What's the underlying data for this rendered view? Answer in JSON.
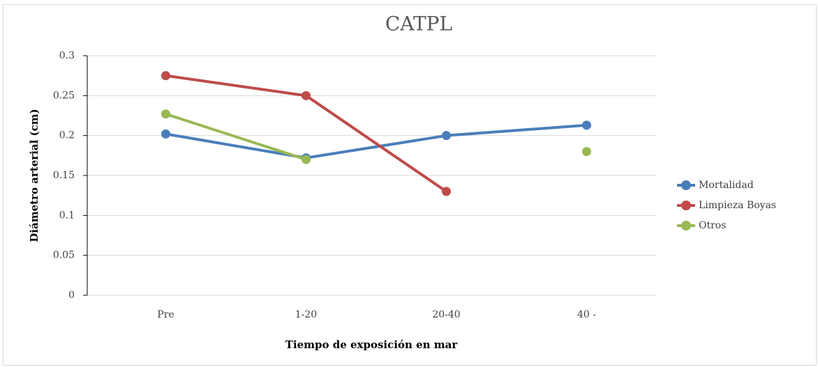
{
  "chart_data": {
    "type": "line",
    "title": "CATPL",
    "x_label": "Tiempo de exposición en  mar",
    "y_label": "Diámetro arterial (cm)",
    "categories": [
      "Pre",
      "1-20",
      "20-40",
      "40 -"
    ],
    "series": [
      {
        "name": "Mortalidad",
        "color": "#4a7ebb",
        "values": [
          0.202,
          0.172,
          0.2,
          0.213
        ]
      },
      {
        "name": "Limpieza Boyas",
        "color": "#be4b48",
        "values": [
          0.275,
          0.25,
          0.13,
          null
        ]
      },
      {
        "name": "Otros",
        "color": "#98b954",
        "values": [
          0.227,
          0.17,
          null,
          0.18
        ]
      }
    ],
    "ylim": [
      0,
      0.3
    ],
    "yticks": [
      0,
      0.05,
      0.1,
      0.15,
      0.2,
      0.25,
      0.3
    ],
    "grid": true,
    "legend": "right"
  }
}
